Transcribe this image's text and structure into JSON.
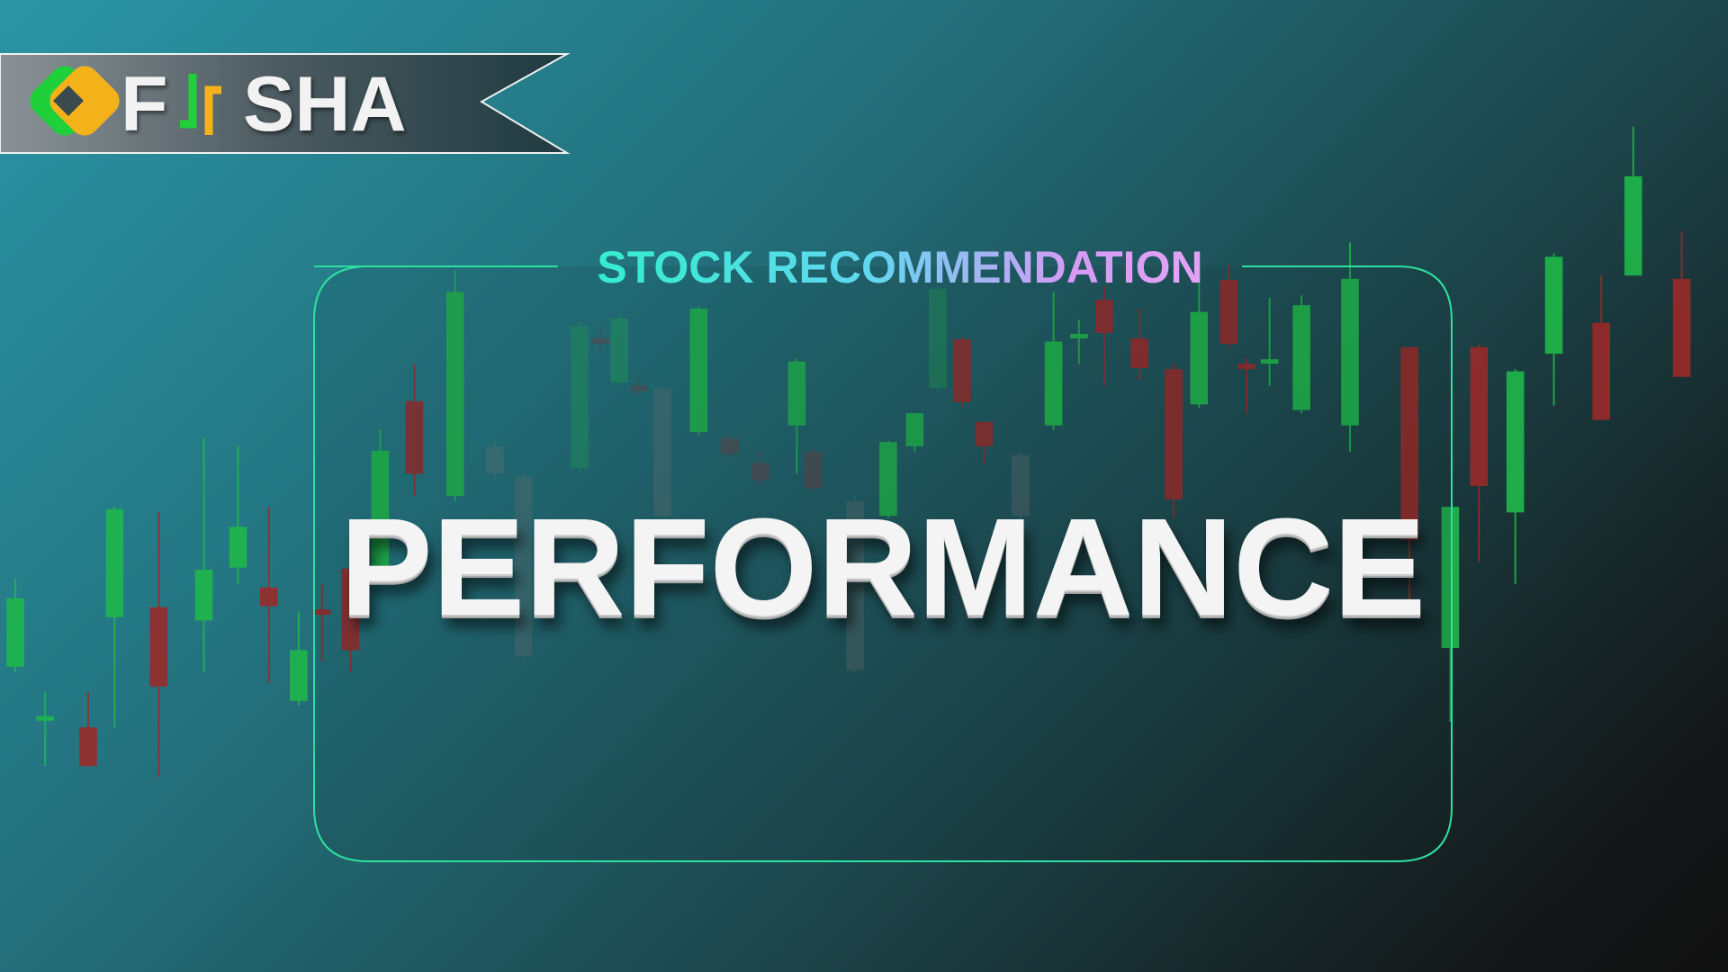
{
  "logo": {
    "text_left": "F",
    "text_right": "SHA"
  },
  "subtitle": "STOCK RECOMMENDATION",
  "title": "PERFORMANCE"
}
